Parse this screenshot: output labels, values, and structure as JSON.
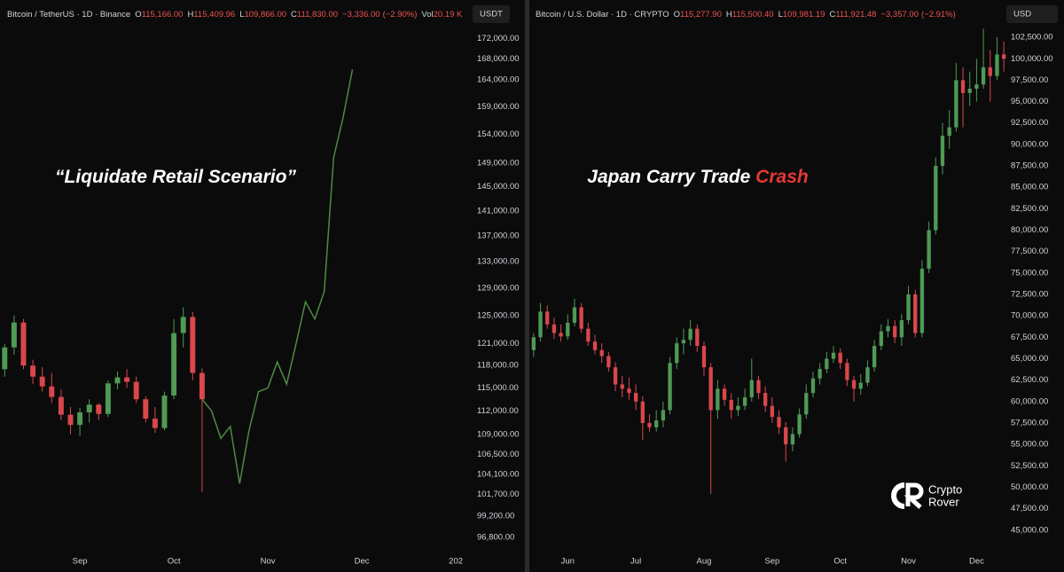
{
  "chart_data": [
    {
      "type": "candlestick",
      "symbol": "Bitcoin / TetherUS · 1D · Binance",
      "legend_items": [
        {
          "key": "O",
          "value": 115166,
          "label": "115,166.00"
        },
        {
          "key": "H",
          "value": 115409.96,
          "label": "115,409.96"
        },
        {
          "key": "L",
          "value": 109866,
          "label": "109,866.00"
        },
        {
          "key": "C",
          "value": 111830,
          "label": "111,830.00"
        }
      ],
      "change": {
        "value": -3336,
        "label": "−3,336.00"
      },
      "change_pct": {
        "value": -2.9,
        "label": "(−2.90%)"
      },
      "volume": {
        "key": "Vol",
        "value": 20190,
        "label": "20.19 K"
      },
      "currency": "USDT",
      "annotation": [
        {
          "text": "“Liquidate Retail Scenario”",
          "color": "#ffffff"
        }
      ],
      "log_scale": true,
      "grid": false,
      "up_color": "#4f9a55",
      "down_color": "#d9474b",
      "ylim": [
        95420,
        174400
      ],
      "yticks": [
        {
          "value": 172000,
          "label": "172,000.00"
        },
        {
          "value": 168000,
          "label": "168,000.00"
        },
        {
          "value": 164000,
          "label": "164,000.00"
        },
        {
          "value": 159000,
          "label": "159,000.00"
        },
        {
          "value": 154000,
          "label": "154,000.00"
        },
        {
          "value": 149000,
          "label": "149,000.00"
        },
        {
          "value": 145000,
          "label": "145,000.00"
        },
        {
          "value": 141000,
          "label": "141,000.00"
        },
        {
          "value": 137000,
          "label": "137,000.00"
        },
        {
          "value": 133000,
          "label": "133,000.00"
        },
        {
          "value": 129000,
          "label": "129,000.00"
        },
        {
          "value": 125000,
          "label": "125,000.00"
        },
        {
          "value": 121000,
          "label": "121,000.00"
        },
        {
          "value": 118000,
          "label": "118,000.00"
        },
        {
          "value": 115000,
          "label": "115,000.00"
        },
        {
          "value": 112000,
          "label": "112,000.00"
        },
        {
          "value": 109000,
          "label": "109,000.00"
        },
        {
          "value": 106500,
          "label": "106,500.00"
        },
        {
          "value": 104100,
          "label": "104,100.00"
        },
        {
          "value": 101700,
          "label": "101,700.00"
        },
        {
          "value": 99200,
          "label": "99,200.00"
        },
        {
          "value": 96800,
          "label": "96,800.00"
        }
      ],
      "categories": [
        null,
        null,
        null,
        null,
        null,
        null,
        null,
        null,
        "Sep",
        null,
        null,
        null,
        null,
        null,
        null,
        null,
        null,
        null,
        "Oct",
        null,
        null,
        null,
        null,
        null,
        null,
        null,
        null,
        null,
        "Nov",
        null,
        null,
        null,
        null,
        null,
        null,
        null,
        null,
        null,
        "Dec",
        null,
        null,
        null,
        null,
        null,
        null,
        null,
        null,
        null,
        "202",
        null
      ],
      "open": [
        117500,
        120500,
        124000,
        118000,
        116500,
        115200,
        113800,
        111500,
        110200,
        111800,
        112800,
        111600,
        115600,
        116400,
        115800,
        113500,
        111000,
        109800,
        114000,
        122500,
        124800,
        117000,
        null,
        null,
        null,
        null,
        null,
        null,
        null,
        null,
        null,
        null,
        null,
        null,
        null,
        null,
        null,
        null,
        null,
        null,
        null,
        null,
        null,
        null,
        null,
        null,
        null,
        null,
        null,
        null
      ],
      "high": [
        121000,
        125000,
        124500,
        118800,
        117800,
        117000,
        114800,
        112500,
        112400,
        113500,
        113000,
        116000,
        117200,
        117500,
        116500,
        113900,
        112500,
        114500,
        124500,
        126200,
        125500,
        117600,
        null,
        null,
        null,
        null,
        null,
        null,
        null,
        null,
        null,
        null,
        null,
        null,
        null,
        null,
        null,
        null,
        null,
        null,
        null,
        null,
        null,
        null,
        null,
        null,
        null,
        null,
        null,
        null
      ],
      "low": [
        116500,
        119500,
        117500,
        115500,
        114500,
        113000,
        110800,
        109000,
        108800,
        110500,
        110800,
        111200,
        114800,
        115000,
        113000,
        110500,
        109200,
        109500,
        113500,
        120500,
        116000,
        102000,
        null,
        null,
        null,
        null,
        null,
        null,
        null,
        null,
        null,
        null,
        null,
        null,
        null,
        null,
        null,
        null,
        null,
        null,
        null,
        null,
        null,
        null,
        null,
        null,
        null,
        null,
        null,
        null
      ],
      "close": [
        120500,
        124000,
        118000,
        116500,
        115200,
        113800,
        111500,
        110200,
        111800,
        112800,
        111600,
        115600,
        116400,
        115800,
        113500,
        111000,
        109800,
        114000,
        122500,
        124800,
        117000,
        113500,
        null,
        null,
        null,
        null,
        null,
        null,
        null,
        null,
        null,
        null,
        null,
        null,
        null,
        null,
        null,
        null,
        null,
        null,
        null,
        null,
        null,
        null,
        null,
        null,
        null,
        null,
        null,
        null
      ],
      "projection": {
        "color": "#4e8a44",
        "values": [
          null,
          null,
          null,
          null,
          null,
          null,
          null,
          null,
          null,
          null,
          null,
          null,
          null,
          null,
          null,
          null,
          null,
          null,
          null,
          null,
          null,
          113500,
          112000,
          108500,
          110000,
          103000,
          109500,
          114500,
          115000,
          118500,
          115500,
          121000,
          127000,
          124500,
          128500,
          150000,
          157000,
          166000,
          null,
          null,
          null,
          null,
          null,
          null,
          null,
          null,
          null,
          null,
          null,
          null
        ]
      }
    },
    {
      "type": "candlestick",
      "symbol": "Bitcoin / U.S. Dollar · 1D · CRYPTO",
      "legend_items": [
        {
          "key": "O",
          "value": 115277.9,
          "label": "115,277.90"
        },
        {
          "key": "H",
          "value": 115500.4,
          "label": "115,500.40"
        },
        {
          "key": "L",
          "value": 109981.19,
          "label": "109,981.19"
        },
        {
          "key": "C",
          "value": 111921.48,
          "label": "111,921.48"
        }
      ],
      "change": {
        "value": -3357,
        "label": "−3,357.00"
      },
      "change_pct": {
        "value": -2.91,
        "label": "(−2.91%)"
      },
      "currency": "USD",
      "annotation": [
        {
          "text": "Japan Carry Trade ",
          "color": "#ffffff"
        },
        {
          "text": "Crash",
          "color": "#e53935"
        }
      ],
      "log_scale": false,
      "grid": false,
      "up_color": "#4f9a55",
      "down_color": "#d9474b",
      "ylim": [
        42700,
        103750
      ],
      "yticks": [
        {
          "value": 102500,
          "label": "102,500.00"
        },
        {
          "value": 100000,
          "label": "100,000.00"
        },
        {
          "value": 97500,
          "label": "97,500.00"
        },
        {
          "value": 95000,
          "label": "95,000.00"
        },
        {
          "value": 92500,
          "label": "92,500.00"
        },
        {
          "value": 90000,
          "label": "90,000.00"
        },
        {
          "value": 87500,
          "label": "87,500.00"
        },
        {
          "value": 85000,
          "label": "85,000.00"
        },
        {
          "value": 82500,
          "label": "82,500.00"
        },
        {
          "value": 80000,
          "label": "80,000.00"
        },
        {
          "value": 77500,
          "label": "77,500.00"
        },
        {
          "value": 75000,
          "label": "75,000.00"
        },
        {
          "value": 72500,
          "label": "72,500.00"
        },
        {
          "value": 70000,
          "label": "70,000.00"
        },
        {
          "value": 67500,
          "label": "67,500.00"
        },
        {
          "value": 65000,
          "label": "65,000.00"
        },
        {
          "value": 62500,
          "label": "62,500.00"
        },
        {
          "value": 60000,
          "label": "60,000.00"
        },
        {
          "value": 57500,
          "label": "57,500.00"
        },
        {
          "value": 55000,
          "label": "55,000.00"
        },
        {
          "value": 52500,
          "label": "52,500.00"
        },
        {
          "value": 50000,
          "label": "50,000.00"
        },
        {
          "value": 47500,
          "label": "47,500.00"
        },
        {
          "value": 45000,
          "label": "45,000.00"
        }
      ],
      "categories": [
        null,
        null,
        null,
        null,
        null,
        "Jun",
        null,
        null,
        null,
        null,
        null,
        null,
        null,
        null,
        null,
        "Jul",
        null,
        null,
        null,
        null,
        null,
        null,
        null,
        null,
        null,
        "Aug",
        null,
        null,
        null,
        null,
        null,
        null,
        null,
        null,
        null,
        "Sep",
        null,
        null,
        null,
        null,
        null,
        null,
        null,
        null,
        null,
        "Oct",
        null,
        null,
        null,
        null,
        null,
        null,
        null,
        null,
        null,
        "Nov",
        null,
        null,
        null,
        null,
        null,
        null,
        null,
        null,
        null,
        "Dec",
        null,
        null,
        null,
        null
      ],
      "open": [
        66000,
        67500,
        70500,
        69000,
        68000,
        67600,
        69200,
        71000,
        68500,
        67000,
        66000,
        65300,
        64000,
        62000,
        61500,
        61000,
        60000,
        57500,
        57000,
        57800,
        59000,
        64500,
        66800,
        67200,
        68500,
        66500,
        64000,
        59000,
        61500,
        60200,
        59000,
        59500,
        60500,
        62500,
        61000,
        59500,
        58200,
        57000,
        55000,
        56200,
        58500,
        61000,
        62700,
        63800,
        65000,
        65700,
        64500,
        62500,
        61500,
        62200,
        64000,
        66500,
        68200,
        68800,
        67500,
        69500,
        72500,
        68000,
        75500,
        80000,
        87500,
        91000,
        92000,
        97500,
        96000,
        96500,
        97000,
        99000,
        98000,
        100500
      ],
      "high": [
        68000,
        71500,
        71200,
        69800,
        69000,
        70200,
        72000,
        71500,
        69200,
        67800,
        66800,
        65800,
        64600,
        63000,
        62800,
        62000,
        60600,
        58500,
        59000,
        60000,
        65200,
        67500,
        68500,
        69500,
        69000,
        67000,
        64500,
        62500,
        62000,
        61000,
        60500,
        61500,
        65000,
        63000,
        61800,
        60500,
        59000,
        57600,
        57000,
        59200,
        62000,
        63500,
        64500,
        65800,
        66500,
        66200,
        65000,
        63000,
        63200,
        64800,
        67200,
        69000,
        69600,
        69500,
        70200,
        73500,
        73000,
        76500,
        81000,
        88500,
        92500,
        94000,
        99500,
        99000,
        98500,
        100000,
        103500,
        101000,
        102500,
        102000
      ],
      "low": [
        65200,
        67000,
        68500,
        67300,
        67000,
        67200,
        68800,
        68000,
        66500,
        65500,
        64500,
        63500,
        61200,
        60500,
        60200,
        59000,
        55500,
        56500,
        56500,
        57000,
        58500,
        63800,
        65500,
        66500,
        65800,
        63000,
        49200,
        58000,
        59500,
        58000,
        58300,
        59000,
        60000,
        60300,
        58800,
        57500,
        56200,
        53000,
        54200,
        55800,
        58000,
        60500,
        62000,
        63300,
        64500,
        63800,
        61800,
        60000,
        60800,
        61800,
        63500,
        66000,
        67500,
        66800,
        66500,
        69000,
        67500,
        67500,
        75000,
        79500,
        86500,
        89500,
        91500,
        92000,
        94500,
        95000,
        96500,
        95000,
        97500,
        98500
      ],
      "close": [
        67500,
        70500,
        69000,
        68000,
        67600,
        69200,
        71000,
        68500,
        67000,
        66000,
        65300,
        64000,
        62000,
        61500,
        61000,
        60000,
        57500,
        57000,
        57800,
        59000,
        64500,
        66800,
        67200,
        68500,
        66500,
        64000,
        59000,
        61500,
        60200,
        59000,
        59500,
        60500,
        62500,
        61000,
        59500,
        58200,
        57000,
        55000,
        56200,
        58500,
        61000,
        62700,
        63800,
        65000,
        65700,
        64500,
        62500,
        61500,
        62200,
        64000,
        66500,
        68200,
        68800,
        67500,
        69500,
        72500,
        68000,
        75500,
        80000,
        87500,
        91000,
        92000,
        97500,
        96000,
        96500,
        97000,
        99000,
        98000,
        100500,
        100000
      ]
    }
  ],
  "watermark": [
    "Crypto",
    "Rover"
  ]
}
